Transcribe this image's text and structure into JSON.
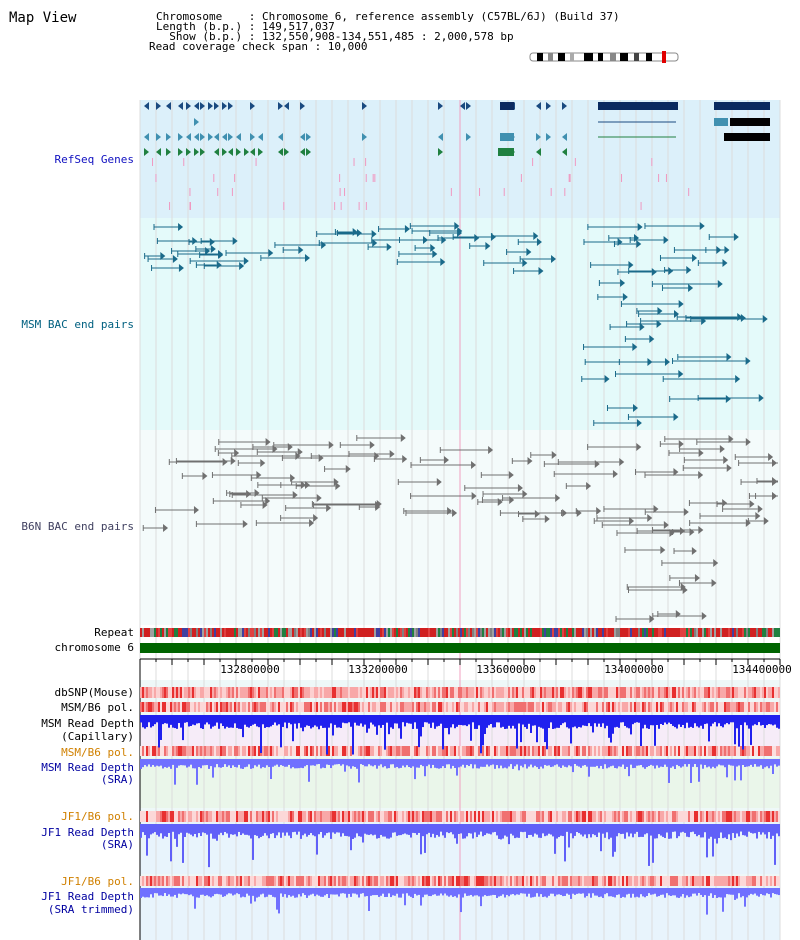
{
  "header": {
    "title": "Map View",
    "info_lines": [
      "Chromosome    : Chromosome 6, reference assembly (C57BL/6J) (Build 37)",
      "Length (b.p.) : 149,517,037",
      "  Show (b.p.) : 132,550,908-134,551,485 : 2,000,578 bp",
      "Read coverage check span : 10,000"
    ]
  },
  "tracks": {
    "refseq": "RefSeq Genes",
    "msm_bac": "MSM BAC end pairs",
    "b6n_bac": "B6N BAC end pairs",
    "repeat": "Repeat",
    "chromosome": "chromosome 6",
    "dbsnp": "dbSNP(Mouse)",
    "msm_b6_pol_1": "MSM/B6 pol.",
    "msm_read_depth_cap": "MSM Read Depth",
    "msm_read_depth_cap_sub": "(Capillary)",
    "msm_b6_pol_2": "MSM/B6 pol.",
    "msm_read_depth_sra": "MSM Read Depth",
    "msm_read_depth_sra_sub": "(SRA)",
    "jf1_b6_pol_1": "JF1/B6 pol.",
    "jf1_read_depth_sra": "JF1 Read Depth",
    "jf1_read_depth_sra_sub": "(SRA)",
    "jf1_b6_pol_2": "JF1/B6 pol.",
    "jf1_read_depth_trim": "JF1 Read Depth",
    "jf1_read_depth_trim_sub": "(SRA trimmed)"
  },
  "axis": {
    "ticks": [
      "132800000",
      "133200000",
      "133600000",
      "134000000",
      "134400000"
    ]
  },
  "colors": {
    "refseq_label": "#1010c0",
    "msm_bac_label": "#006080",
    "b6n_bac_label": "#404060",
    "orange_label": "#d08000",
    "blue_label": "#0000a0",
    "chromosome_bar": "#006400",
    "refseq_bg": "#dcf0fa",
    "msm_bg": "#e4fafa",
    "b6n_bg": "#f2fafa",
    "depth_blue": "#2020ee",
    "depth_light": "#7070ff"
  }
}
